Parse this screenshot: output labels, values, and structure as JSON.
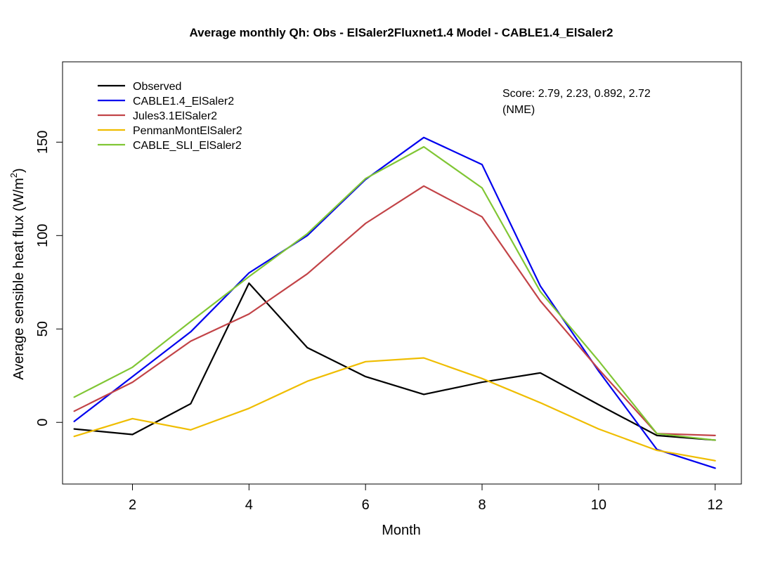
{
  "chart_data": {
    "type": "line",
    "title": "Average monthly Qh:   Obs - ElSaler2Fluxnet1.4   Model - CABLE1.4_ElSaler2",
    "xlabel": "Month",
    "ylabel_main": "Average sensible heat flux  (W/m",
    "ylabel_sup": "2",
    "ylabel_close": ")",
    "xlim": [
      0.8,
      12.45
    ],
    "ylim": [
      -33,
      193
    ],
    "x_ticks": [
      2,
      4,
      6,
      8,
      10,
      12
    ],
    "y_ticks": [
      0,
      50,
      100,
      150
    ],
    "x": [
      1,
      2,
      3,
      4,
      5,
      6,
      7,
      8,
      9,
      10,
      11,
      12
    ],
    "legend_position": "top-left",
    "annotation_line1": "Score: 2.79, 2.23, 0.892, 2.72",
    "annotation_line2": "(NME)",
    "series": [
      {
        "name": "Observed",
        "color": "#000000",
        "values": [
          -3.5,
          -6.5,
          10,
          74.5,
          40,
          24.5,
          15,
          21.5,
          26.5,
          9.5,
          -7,
          -9.5
        ]
      },
      {
        "name": "CABLE1.4_ElSaler2",
        "color": "#0000ee",
        "values": [
          0.5,
          24.5,
          48.5,
          80,
          100,
          130,
          152.5,
          138,
          73,
          27.5,
          -14.5,
          -24.5
        ]
      },
      {
        "name": "Jules3.1ElSaler2",
        "color": "#c24347",
        "values": [
          6,
          21.5,
          43.5,
          58,
          79.5,
          106.5,
          126.5,
          110,
          65,
          28.5,
          -6,
          -7
        ]
      },
      {
        "name": "PenmanMontElSaler2",
        "color": "#efbd00",
        "values": [
          -7.5,
          2,
          -4,
          7.5,
          22,
          32.5,
          34.5,
          23.5,
          10.5,
          -3.5,
          -15,
          -20.5
        ]
      },
      {
        "name": "CABLE_SLI_ElSaler2",
        "color": "#80c634",
        "values": [
          13.5,
          29.5,
          54,
          78,
          101,
          130.5,
          147.5,
          125.5,
          70,
          33,
          -6,
          -9.5
        ]
      }
    ]
  }
}
